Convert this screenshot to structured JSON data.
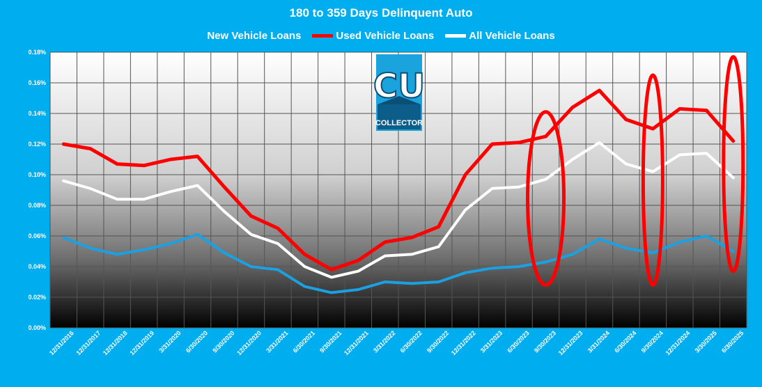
{
  "chart_data": {
    "type": "line",
    "title": "180 to 359 Days Delinquent Auto",
    "categories": [
      "12/31/2016",
      "12/31/2017",
      "12/31/2018",
      "12/31/2019",
      "3/31/2020",
      "6/30/2020",
      "9/30/2020",
      "12/31/2020",
      "3/31/2021",
      "6/30/2021",
      "9/30/2021",
      "12/31/2021",
      "3/31/2022",
      "6/30/2022",
      "9/30/2022",
      "12/31/2022",
      "3/31/2023",
      "6/30/2023",
      "9/30/2023",
      "12/31/2023",
      "3/31/2024",
      "6/30/2024",
      "9/30/2024",
      "12/31/2024",
      "3/30/2025",
      "6/30/2025"
    ],
    "yticks": [
      "0.00%",
      "0.02%",
      "0.04%",
      "0.06%",
      "0.08%",
      "0.10%",
      "0.12%",
      "0.14%",
      "0.16%",
      "0.18%"
    ],
    "ylim": [
      0,
      0.18
    ],
    "series": [
      {
        "name": "New Vehicle Loans",
        "color": "#1ba1e2",
        "values": [
          0.059,
          0.052,
          0.048,
          0.051,
          0.055,
          0.061,
          0.049,
          0.04,
          0.038,
          0.027,
          0.023,
          0.025,
          0.03,
          0.029,
          0.03,
          0.036,
          0.039,
          0.04,
          0.043,
          0.048,
          0.058,
          0.052,
          0.049,
          0.056,
          0.06,
          0.05
        ]
      },
      {
        "name": "Used Vehicle Loans",
        "color": "#ff0000",
        "values": [
          0.12,
          0.117,
          0.107,
          0.106,
          0.11,
          0.112,
          0.092,
          0.073,
          0.065,
          0.048,
          0.038,
          0.044,
          0.056,
          0.059,
          0.066,
          0.1,
          0.12,
          0.121,
          0.125,
          0.144,
          0.155,
          0.136,
          0.13,
          0.143,
          0.142,
          0.122
        ]
      },
      {
        "name": "All Vehicle Loans",
        "color": "#ffffff",
        "values": [
          0.096,
          0.091,
          0.084,
          0.084,
          0.089,
          0.093,
          0.076,
          0.061,
          0.055,
          0.04,
          0.033,
          0.037,
          0.047,
          0.048,
          0.053,
          0.077,
          0.091,
          0.092,
          0.097,
          0.11,
          0.121,
          0.107,
          0.102,
          0.113,
          0.114,
          0.098
        ]
      }
    ],
    "grid": true,
    "legend_position": "top",
    "highlighted_categories": [
      "9/30/2023",
      "9/30/2024",
      "6/30/2025"
    ]
  },
  "logo": {
    "letters": "CU",
    "caption": "COLLECTOR"
  }
}
